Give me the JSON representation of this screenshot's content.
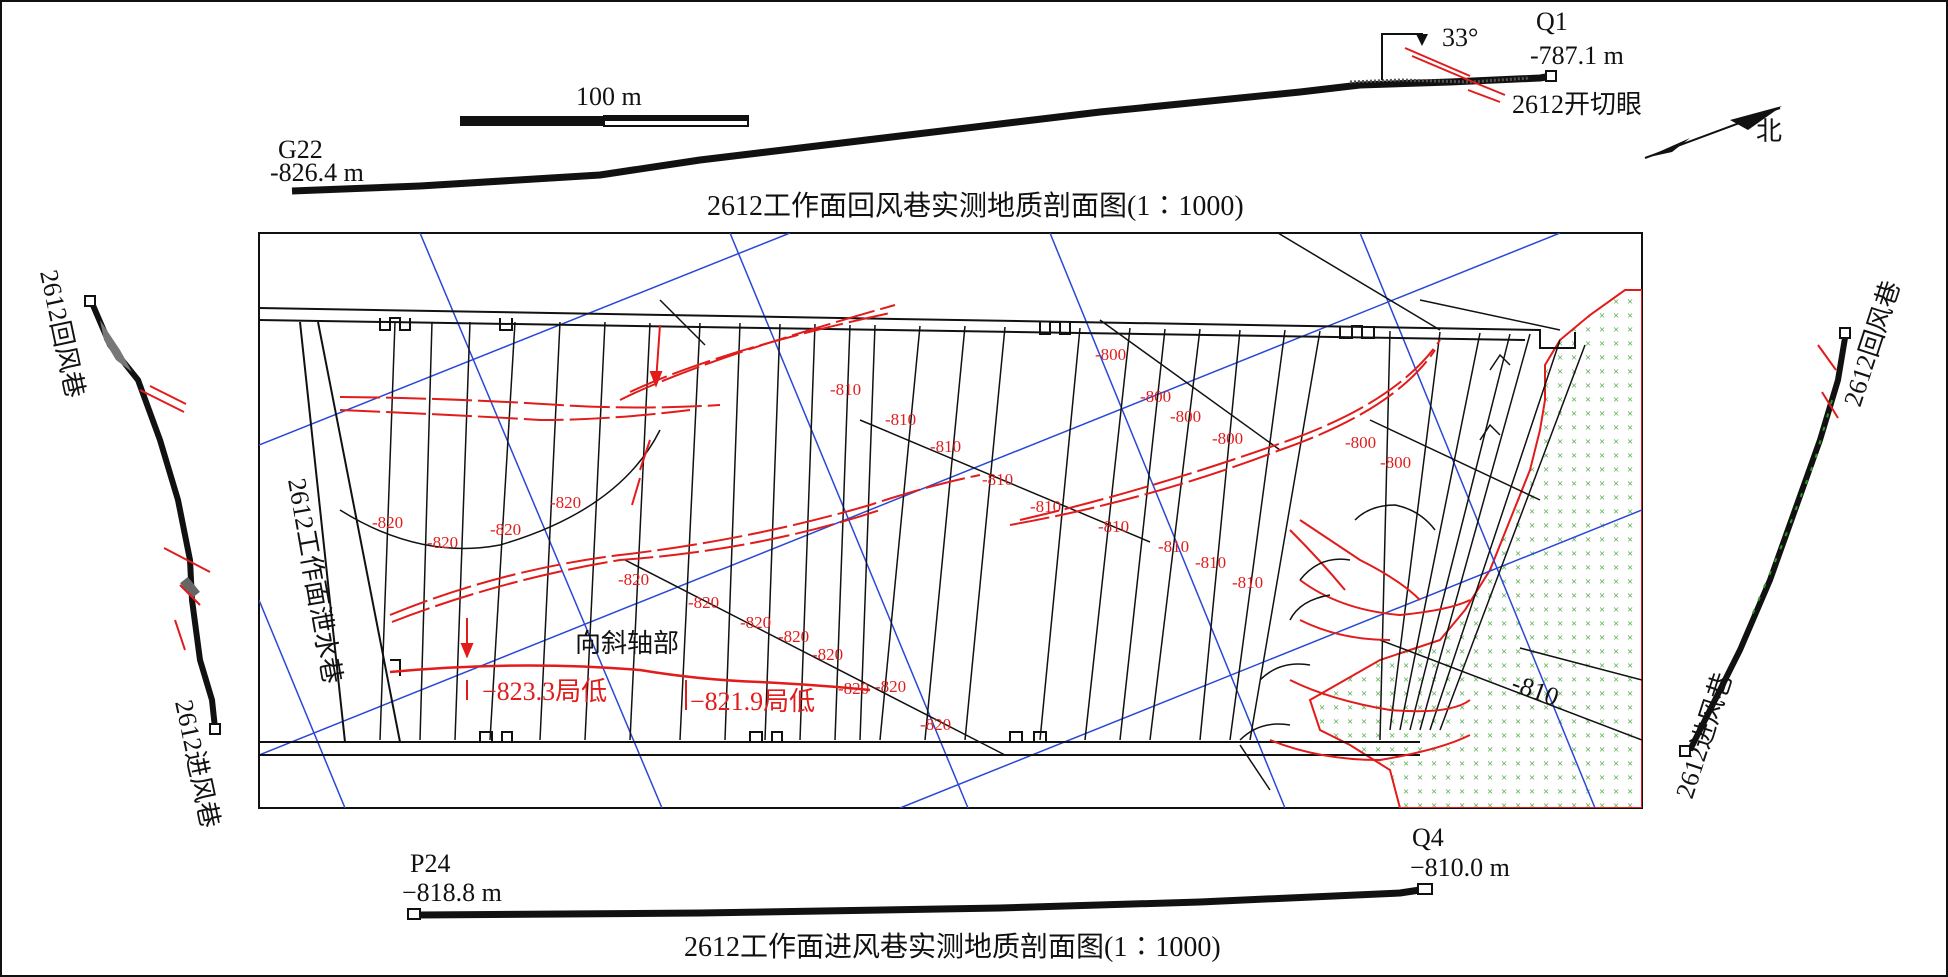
{
  "colors": {
    "ink": "#111111",
    "fault_red": "#e21b1b",
    "grid_blue": "#2a48d6",
    "intrusion_green": "#2e9a22"
  },
  "top_section": {
    "start_point": "G22",
    "start_elevation": "-826.4 m",
    "end_point": "Q1",
    "end_elevation": "-787.1 m",
    "dip_angle": "33°",
    "cut_eye": "2612开切眼",
    "scale_label": "100 m",
    "north": "北",
    "caption": "2612工作面回风巷实测地质剖面图(1∶1000)"
  },
  "bottom_section": {
    "start_point": "P24",
    "start_elevation": "−818.8 m",
    "end_point": "Q4",
    "end_elevation": "−810.0 m",
    "caption": "2612工作面进风巷实测地质剖面图(1∶1000)"
  },
  "left_section": {
    "top_label": "2612回风巷",
    "bottom_label": "2612进风巷"
  },
  "right_section": {
    "top_label": "2612回风巷",
    "bottom_label": "2612进风巷"
  },
  "plan": {
    "drain_roadway": "2612工作面泄水巷",
    "syncline_axis": "向斜轴部",
    "low_point_1": "−823.3局低",
    "low_point_2": "−821.9局低",
    "contours_black": [
      "-800",
      "-800",
      "-800",
      "-800",
      "-800",
      "-800"
    ],
    "contours_red": [
      "-810",
      "-810",
      "-810",
      "-810",
      "-810",
      "-810",
      "-810",
      "-810",
      "-810",
      "-820",
      "-820",
      "-820",
      "-820",
      "-820",
      "-820",
      "-820",
      "-820",
      "-820",
      "-820",
      "-820",
      "-820"
    ],
    "contour_large": "-810"
  }
}
